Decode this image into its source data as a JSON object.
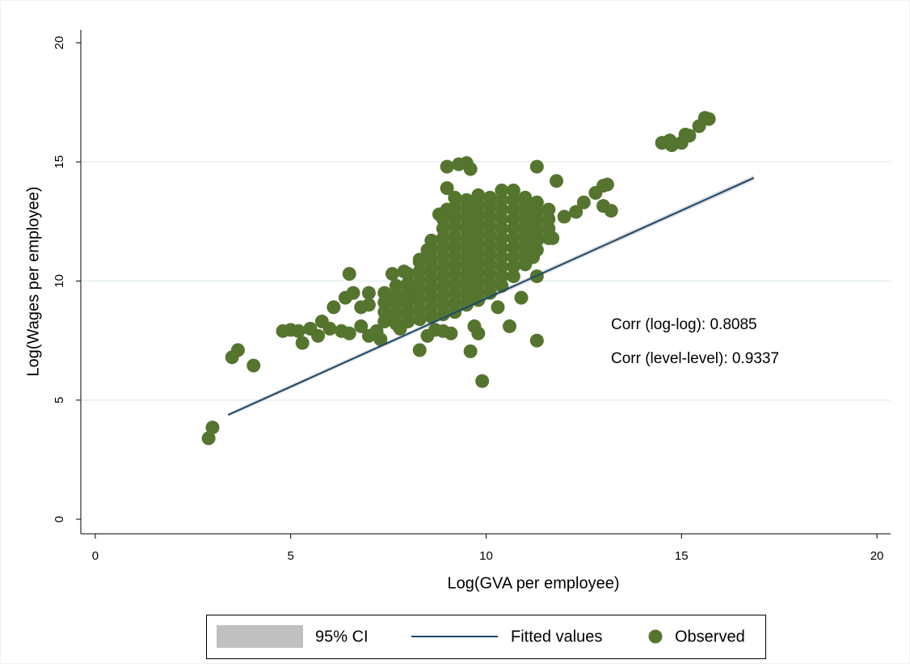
{
  "chart_data": {
    "type": "scatter",
    "xlabel": "Log(GVA per employee)",
    "ylabel": "Log(Wages per employee)",
    "xlim": [
      -0.37,
      20.35
    ],
    "ylim": [
      -0.61,
      20.54
    ],
    "xticks": [
      0,
      5,
      10,
      15,
      20
    ],
    "yticks": [
      0,
      5,
      10,
      15,
      20
    ],
    "grid": true,
    "annotations": [
      "Corr (log-log): 0.8085",
      "Corr (level-level): 0.9337"
    ],
    "ci": {
      "name": "95% CI",
      "color": "#c0c0c0",
      "x": [
        3.4,
        16.85
      ],
      "lower": [
        4.3,
        14.22
      ],
      "upper": [
        4.46,
        14.44
      ]
    },
    "fit": {
      "name": "Fitted values",
      "color": "#1a476f",
      "x": [
        3.4,
        16.85
      ],
      "values": [
        4.38,
        14.33
      ]
    },
    "series": [
      {
        "name": "Observed",
        "color": "#55752f",
        "x": [
          2.9,
          3.0,
          3.5,
          3.65,
          4.05,
          4.8,
          5.0,
          5.2,
          5.3,
          5.5,
          5.7,
          5.8,
          6.0,
          6.1,
          6.3,
          6.5,
          6.5,
          6.6,
          6.4,
          6.8,
          7.0,
          7.2,
          7.0,
          7.3,
          7.5,
          7.7,
          7.8,
          8.0,
          8.2,
          8.3,
          8.5,
          8.7,
          8.9,
          9.1,
          9.6,
          9.8,
          9.9,
          9.7,
          10.3,
          10.6,
          10.9,
          11.3,
          11.3,
          11.2,
          11.7,
          12.0,
          12.3,
          12.5,
          12.8,
          13.0,
          13.1,
          13.0,
          13.2,
          11.8,
          11.3,
          9.0,
          9.3,
          9.5,
          9.6,
          9.0,
          14.5,
          14.7,
          14.75,
          15.0,
          15.1,
          15.2,
          15.45,
          15.6,
          15.7,
          8.8,
          9.0,
          8.5,
          8.3,
          7.9,
          7.6,
          6.8,
          7.0,
          7.4,
          7.4,
          7.4,
          7.4,
          7.7,
          7.7,
          7.7,
          7.7,
          7.7,
          8.0,
          8.0,
          8.0,
          8.0,
          8.0,
          8.0,
          8.3,
          8.3,
          8.3,
          8.3,
          8.3,
          8.3,
          8.3,
          8.6,
          8.6,
          8.6,
          8.6,
          8.6,
          8.6,
          8.6,
          8.6,
          8.6,
          8.9,
          8.9,
          8.9,
          8.9,
          8.9,
          8.9,
          8.9,
          8.9,
          8.9,
          8.9,
          8.9,
          9.2,
          9.2,
          9.2,
          9.2,
          9.2,
          9.2,
          9.2,
          9.2,
          9.2,
          9.2,
          9.2,
          9.2,
          9.2,
          9.5,
          9.5,
          9.5,
          9.5,
          9.5,
          9.5,
          9.5,
          9.5,
          9.5,
          9.5,
          9.5,
          9.5,
          9.8,
          9.8,
          9.8,
          9.8,
          9.8,
          9.8,
          9.8,
          9.8,
          9.8,
          9.8,
          9.8,
          9.8,
          10.1,
          10.1,
          10.1,
          10.1,
          10.1,
          10.1,
          10.1,
          10.1,
          10.1,
          10.1,
          10.1,
          10.4,
          10.4,
          10.4,
          10.4,
          10.4,
          10.4,
          10.4,
          10.4,
          10.4,
          10.4,
          10.4,
          10.7,
          10.7,
          10.7,
          10.7,
          10.7,
          10.7,
          10.7,
          10.7,
          10.7,
          10.7,
          11.0,
          11.0,
          11.0,
          11.0,
          11.0,
          11.0,
          11.0,
          11.0,
          11.3,
          11.3,
          11.3,
          11.3,
          11.3,
          11.3,
          11.6,
          11.6,
          11.6,
          11.6
        ],
        "values": [
          3.4,
          3.85,
          6.8,
          7.1,
          6.45,
          7.9,
          7.95,
          7.9,
          7.4,
          8.0,
          7.7,
          8.3,
          8.0,
          8.9,
          7.9,
          7.8,
          10.3,
          9.5,
          9.3,
          8.1,
          7.7,
          7.9,
          9.5,
          7.55,
          8.5,
          9.2,
          8.0,
          8.7,
          9.5,
          7.1,
          7.7,
          7.95,
          7.9,
          7.8,
          7.05,
          7.8,
          5.8,
          8.1,
          8.9,
          8.1,
          9.3,
          7.5,
          10.2,
          11.0,
          11.8,
          12.7,
          12.9,
          13.3,
          13.7,
          14.0,
          14.05,
          13.15,
          12.95,
          14.2,
          14.8,
          14.8,
          14.9,
          14.95,
          14.7,
          13.9,
          15.8,
          15.9,
          15.7,
          15.8,
          16.15,
          16.1,
          16.5,
          16.85,
          16.8,
          12.8,
          13.0,
          11.3,
          10.9,
          10.4,
          10.3,
          8.9,
          9.0,
          8.3,
          8.7,
          9.1,
          9.5,
          8.2,
          8.6,
          9.0,
          9.4,
          9.8,
          8.3,
          8.7,
          9.1,
          9.5,
          9.9,
          10.3,
          8.4,
          8.8,
          9.2,
          9.6,
          10.0,
          10.4,
          10.8,
          8.5,
          8.9,
          9.3,
          9.7,
          10.1,
          10.5,
          10.9,
          11.3,
          11.7,
          8.6,
          9.0,
          9.4,
          9.8,
          10.2,
          10.6,
          11.0,
          11.4,
          11.8,
          12.2,
          12.6,
          8.7,
          9.1,
          9.5,
          9.9,
          10.3,
          10.7,
          11.1,
          11.5,
          11.9,
          12.3,
          12.7,
          13.1,
          13.5,
          9.0,
          9.4,
          9.8,
          10.2,
          10.6,
          11.0,
          11.4,
          11.8,
          12.2,
          12.6,
          13.0,
          13.4,
          9.2,
          9.6,
          10.0,
          10.4,
          10.8,
          11.2,
          11.6,
          12.0,
          12.4,
          12.8,
          13.2,
          13.6,
          9.5,
          9.9,
          10.3,
          10.7,
          11.1,
          11.5,
          11.9,
          12.3,
          12.7,
          13.1,
          13.5,
          9.8,
          10.2,
          10.6,
          11.0,
          11.4,
          11.8,
          12.2,
          12.6,
          13.0,
          13.4,
          13.8,
          10.2,
          10.6,
          11.0,
          11.4,
          11.8,
          12.2,
          12.6,
          13.0,
          13.4,
          13.8,
          10.7,
          11.1,
          11.5,
          11.9,
          12.3,
          12.7,
          13.1,
          13.5,
          11.3,
          11.7,
          12.1,
          12.5,
          12.9,
          13.3,
          11.8,
          12.2,
          12.6,
          13.0
        ]
      }
    ]
  }
}
